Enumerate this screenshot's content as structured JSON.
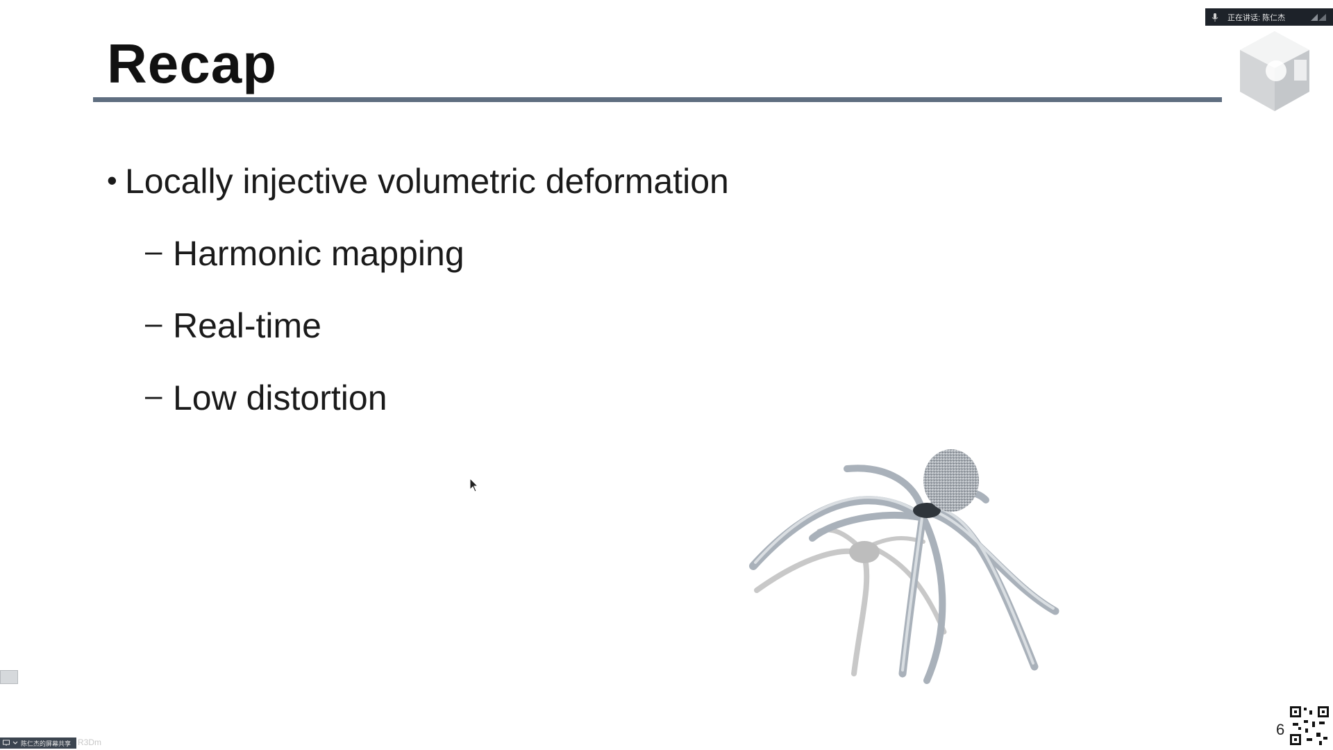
{
  "slide": {
    "title": "Recap",
    "bullets": [
      {
        "text": "Locally injective volumetric deformation",
        "marker": "•",
        "children": [
          {
            "text": "Harmonic mapping",
            "marker": "–"
          },
          {
            "text": "Real-time",
            "marker": "–"
          },
          {
            "text": "Low distortion",
            "marker": "–"
          }
        ]
      }
    ],
    "page_number": "6",
    "accent_color": "#5f6e80",
    "image": {
      "icon": "spider-deformation-image"
    }
  },
  "overlay": {
    "speaker_label": "正在讲话: 陈仁杰",
    "share_label": "陈仁杰的屏幕共享",
    "faint_label": "R3Dm"
  }
}
